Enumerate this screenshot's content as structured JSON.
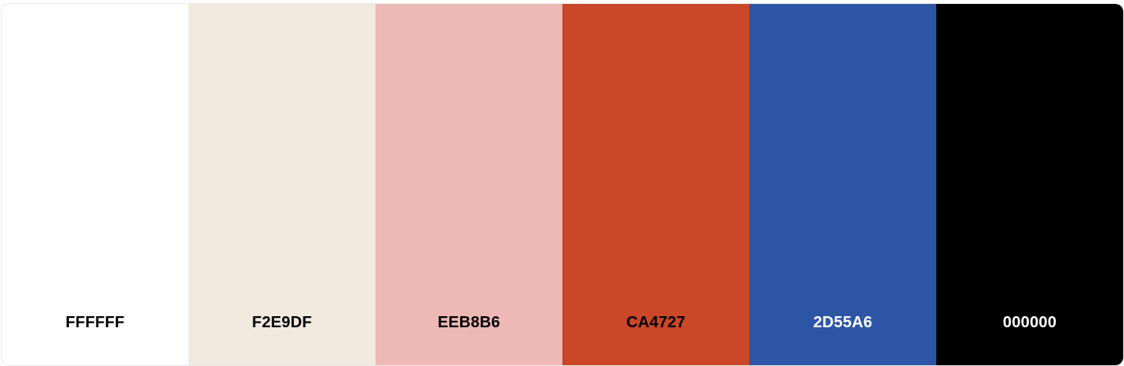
{
  "palette": {
    "swatches": [
      {
        "hex": "FFFFFF",
        "color": "#FFFFFF",
        "text_color": "#000000"
      },
      {
        "hex": "F2E9DF",
        "color": "#F2E9DF",
        "text_color": "#000000"
      },
      {
        "hex": "EEB8B6",
        "color": "#EEB8B6",
        "text_color": "#000000"
      },
      {
        "hex": "CA4727",
        "color": "#CA4727",
        "text_color": "#000000"
      },
      {
        "hex": "2D55A6",
        "color": "#2D55A6",
        "text_color": "#FFFFFF"
      },
      {
        "hex": "000000",
        "color": "#000000",
        "text_color": "#FFFFFF"
      }
    ]
  }
}
